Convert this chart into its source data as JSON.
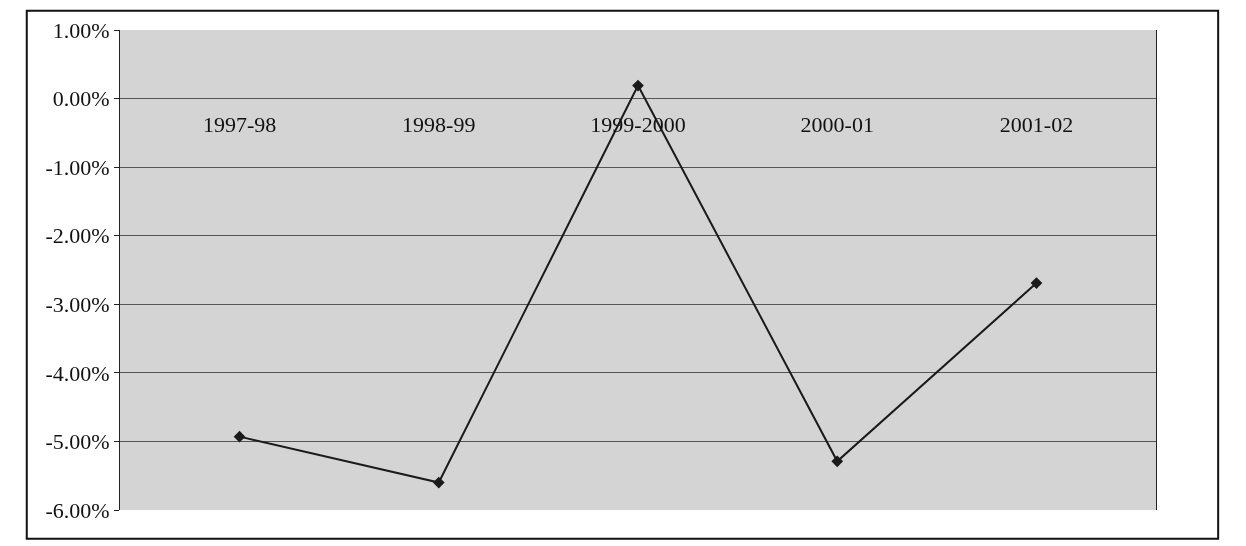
{
  "chart_data": {
    "type": "line",
    "categories": [
      "1997-98",
      "1998-99",
      "1999-2000",
      "2000-01",
      "2001-02"
    ],
    "series": [
      {
        "color": "#1a1a1a",
        "values": [
          -4.93,
          -5.6,
          0.19,
          -5.29,
          -2.69
        ]
      }
    ],
    "ylim": [
      -6,
      1
    ],
    "yticks": [
      {
        "value": 1,
        "label": "1.00%"
      },
      {
        "value": 0,
        "label": "0.00%"
      },
      {
        "value": -1,
        "label": "-1.00%"
      },
      {
        "value": -2,
        "label": "-2.00%"
      },
      {
        "value": -3,
        "label": "-3.00%"
      },
      {
        "value": -4,
        "label": "-4.00%"
      },
      {
        "value": -5,
        "label": "-5.00%"
      },
      {
        "value": -6,
        "label": "-6.00%"
      }
    ],
    "grid": "y",
    "marker": "diamond",
    "line_style": "solid",
    "legend": false
  }
}
